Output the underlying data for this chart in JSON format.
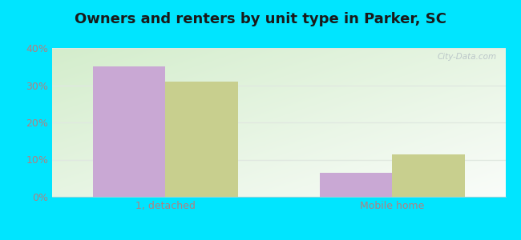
{
  "title": "Owners and renters by unit type in Parker, SC",
  "categories": [
    "1, detached",
    "Mobile home"
  ],
  "owner_values": [
    35.0,
    6.5
  ],
  "renter_values": [
    31.0,
    11.5
  ],
  "owner_color": "#c9a8d4",
  "renter_color": "#c8cf8e",
  "ylim": [
    0,
    40
  ],
  "yticks": [
    0,
    10,
    20,
    30,
    40
  ],
  "ytick_labels": [
    "0%",
    "10%",
    "20%",
    "30%",
    "40%"
  ],
  "background_color": "#00e5ff",
  "bar_width": 0.32,
  "title_fontsize": 13,
  "tick_fontsize": 9,
  "legend_fontsize": 9,
  "tick_color": "#b08080",
  "grid_color": "#e0e8e0",
  "bg_color_topleft": "#c8e6c0",
  "bg_color_topright": "#eef8f0",
  "bg_color_bottomright": "#f8fef8"
}
